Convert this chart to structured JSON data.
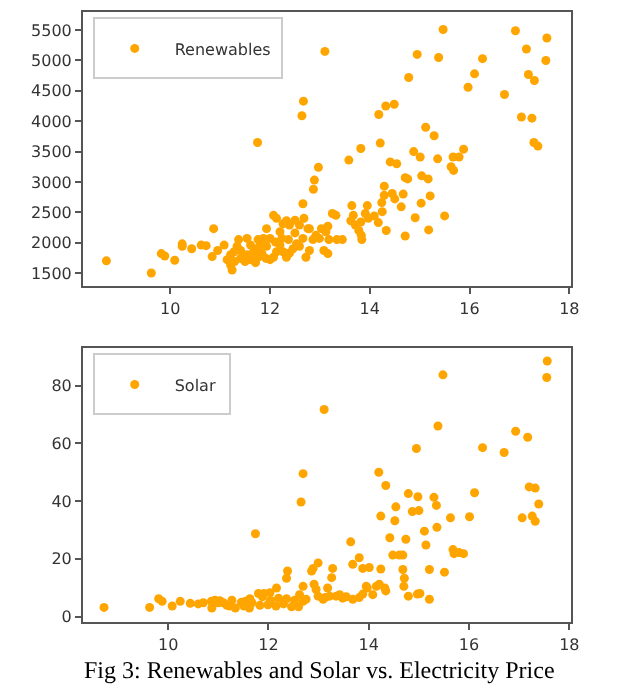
{
  "chart_data": [
    {
      "type": "scatter",
      "marker": "circle",
      "legend": "top left",
      "xlim": [
        8.25,
        18.03
      ],
      "ylim": [
        1280,
        5800
      ],
      "xticks": [
        10,
        12,
        14,
        16,
        18
      ],
      "yticks": [
        1500,
        2000,
        2500,
        3000,
        3500,
        4000,
        4500,
        5000,
        5500
      ],
      "series": [
        {
          "name": "Renewables",
          "color": "#ffa500",
          "x": [
            8.72,
            9.62,
            9.82,
            9.89,
            10.09,
            10.24,
            10.24,
            10.43,
            10.62,
            10.72,
            10.87,
            10.84,
            13.1,
            12.67,
            12.64,
            14.18,
            14.32,
            14.49,
            14.78,
            14.95,
            15.38,
            15.47,
            15.97,
            16.1,
            16.26,
            16.7,
            16.92,
            17.14,
            17.18,
            17.3,
            17.55,
            17.53,
            17.04,
            17.25,
            17.29,
            17.37,
            13.82,
            14.21,
            13.58,
            12.97,
            12.89,
            12.87,
            12.66,
            14.41,
            14.54,
            14.88,
            15.01,
            15.12,
            15.29,
            15.36,
            15.67,
            15.79,
            15.88,
            15.63,
            15.68,
            14.71,
            14.76,
            15.04,
            15.17,
            15.21,
            15.03,
            15.5,
            15.18,
            14.91,
            14.71,
            14.33,
            14.67,
            14.63,
            14.5,
            14.45,
            14.29,
            14.29,
            14.24,
            14.25,
            14.17,
            14.09,
            13.95,
            13.91,
            13.97,
            13.82,
            13.78,
            13.83,
            13.84,
            13.71,
            13.64,
            13.67,
            13.62,
            13.25,
            13.32,
            13.16,
            13.12,
            13.18,
            13.34,
            13.45,
            13.08,
            13.16,
            13.03,
            12.99,
            11.75,
            12.68,
            12.76,
            12.59,
            12.5,
            12.39,
            12.33,
            12.26,
            12.13,
            12.07,
            12.2,
            12.0,
            11.93,
            11.87,
            11.8,
            11.74,
            11.67,
            11.61,
            11.54,
            11.41,
            11.34,
            11.28,
            11.21,
            11.14,
            11.21,
            11.24,
            11.29,
            11.41,
            11.5,
            11.61,
            11.71,
            11.76,
            11.84,
            11.92,
            12.0,
            12.07,
            12.13,
            12.2,
            12.26,
            12.33,
            12.39,
            12.46,
            12.53,
            12.59,
            12.66,
            12.72,
            12.79,
            12.86,
            12.92,
            12.79,
            12.11,
            12.24,
            12.37,
            12.5,
            11.93,
            11.76,
            11.54,
            11.37,
            11.08,
            10.95
          ],
          "values": [
            1700,
            1500,
            1820,
            1780,
            1710,
            1980,
            1940,
            1900,
            1960,
            1950,
            2230,
            1770,
            5150,
            4330,
            4090,
            4110,
            4250,
            4280,
            4720,
            5100,
            5050,
            5510,
            4560,
            4780,
            5030,
            4440,
            5490,
            5190,
            4770,
            4670,
            5370,
            5000,
            4070,
            4050,
            3650,
            3590,
            3550,
            3640,
            3360,
            3240,
            3030,
            2880,
            2640,
            3330,
            3300,
            3500,
            3410,
            3900,
            3760,
            3380,
            3410,
            3410,
            3540,
            3250,
            3190,
            3070,
            3050,
            3100,
            3050,
            2770,
            2650,
            2440,
            2210,
            2410,
            2110,
            2200,
            2800,
            2590,
            2720,
            2810,
            2930,
            2780,
            2660,
            2510,
            2330,
            2440,
            2610,
            2480,
            2400,
            2340,
            2200,
            2120,
            2050,
            2290,
            2610,
            2450,
            2360,
            2480,
            2450,
            2270,
            2180,
            2050,
            2050,
            2050,
            1870,
            1820,
            2230,
            2070,
            3650,
            2400,
            2230,
            2290,
            2370,
            2290,
            2360,
            2310,
            2400,
            2450,
            2180,
            2070,
            2230,
            2070,
            1960,
            1900,
            1850,
            1960,
            1800,
            1870,
            1940,
            1850,
            1800,
            1720,
            1630,
            1550,
            1690,
            1740,
            1690,
            1720,
            1670,
            1760,
            1820,
            1740,
            1720,
            1760,
            1850,
            1960,
            1850,
            1760,
            1830,
            1900,
            1980,
            1940,
            2070,
            1760,
            1870,
            2050,
            2120,
            2230,
            2010,
            2070,
            2050,
            2160,
            1940,
            2050,
            2070,
            2050,
            1960,
            1870
          ]
        }
      ]
    },
    {
      "type": "scatter",
      "marker": "circle",
      "legend": "top left",
      "xlim": [
        8.3,
        18.03
      ],
      "ylim": [
        -2,
        93
      ],
      "xticks": [
        10,
        12,
        14,
        16,
        18
      ],
      "yticks": [
        0,
        20,
        40,
        60,
        80
      ],
      "annotations": [
        "Fig 3: Renewables and Solar vs. Electricity Price"
      ],
      "series": [
        {
          "name": "Solar",
          "color": "#ffa500",
          "x": [
            8.72,
            9.63,
            9.81,
            9.88,
            10.08,
            10.24,
            10.44,
            10.6,
            10.7,
            10.86,
            10.93,
            11.0,
            10.87,
            11.74,
            12.69,
            12.65,
            13.11,
            15.48,
            15.38,
            14.95,
            15.3,
            14.98,
            14.87,
            15.11,
            15.0,
            14.79,
            14.2,
            14.34,
            14.24,
            14.54,
            14.52,
            14.42,
            14.48,
            14.61,
            14.68,
            14.74,
            15.35,
            15.36,
            15.14,
            15.21,
            15.51,
            15.63,
            15.68,
            15.7,
            15.8,
            15.89,
            16.01,
            16.11,
            16.27,
            16.7,
            16.93,
            17.17,
            17.06,
            17.26,
            17.32,
            17.2,
            17.32,
            17.39,
            17.55,
            17.56,
            14.68,
            14.71,
            14.7,
            14.79,
            14.97,
            15.02,
            15.21,
            14.24,
            14.32,
            14.34,
            14.21,
            14.15,
            14.01,
            13.88,
            13.81,
            13.64,
            13.68,
            13.95,
            13.97,
            13.88,
            14.08,
            13.81,
            13.68,
            13.55,
            13.28,
            13.26,
            13.18,
            13.22,
            13.09,
            13.13,
            13.35,
            13.42,
            13.48,
            12.99,
            12.95,
            12.91,
            12.99,
            12.89,
            12.86,
            11.03,
            11.1,
            11.17,
            11.23,
            11.27,
            11.34,
            11.46,
            11.51,
            11.62,
            11.67,
            11.83,
            11.88,
            11.99,
            12.04,
            12.15,
            12.2,
            12.3,
            12.36,
            12.46,
            12.52,
            12.62,
            12.6,
            12.16,
            12.03,
            11.91,
            12.36,
            12.38,
            11.54,
            11.63,
            11.8,
            12.69,
            12.69,
            12.75
          ],
          "values": [
            3.2,
            3.2,
            6.2,
            5.3,
            3.7,
            5.3,
            4.6,
            4.4,
            4.8,
            5.3,
            5.7,
            4.8,
            3.0,
            28.7,
            49.5,
            39.7,
            71.7,
            83.7,
            66,
            58.2,
            41.3,
            41.5,
            36.4,
            29.6,
            36.7,
            42.6,
            50,
            45.4,
            34.8,
            38,
            33.2,
            27.3,
            21.3,
            21.3,
            21.3,
            26.8,
            38.5,
            30.9,
            24.8,
            16.3,
            15.4,
            34.2,
            23.2,
            21.8,
            22.2,
            21.8,
            34.6,
            42.9,
            58.5,
            56.8,
            64.2,
            62.1,
            34.2,
            34.8,
            33,
            44.9,
            44.5,
            39,
            82.8,
            88.5,
            16.3,
            13.3,
            10.5,
            7.1,
            7.8,
            8.0,
            6.0,
            16.5,
            9.9,
            8.9,
            11.2,
            10.5,
            17,
            16.7,
            20.4,
            25.9,
            18.1,
            10.5,
            9.9,
            7.8,
            7.6,
            6.6,
            6.0,
            6.9,
            16.7,
            13.5,
            9.9,
            7.1,
            6.0,
            6.6,
            7.1,
            7.6,
            6.4,
            7.1,
            9.4,
            11.2,
            18.6,
            16.7,
            15.8,
            5.5,
            4.8,
            3.9,
            3.7,
            5.7,
            3.0,
            5.0,
            3.7,
            3.0,
            4.8,
            3.9,
            6.9,
            4.1,
            5.7,
            3.7,
            6.4,
            4.4,
            6.2,
            3.4,
            5.7,
            7.6,
            3.4,
            9.9,
            8.3,
            8.0,
            13.3,
            15.8,
            5.3,
            6.2,
            8.0,
            10.5,
            5.3,
            6.0
          ]
        }
      ]
    }
  ]
}
